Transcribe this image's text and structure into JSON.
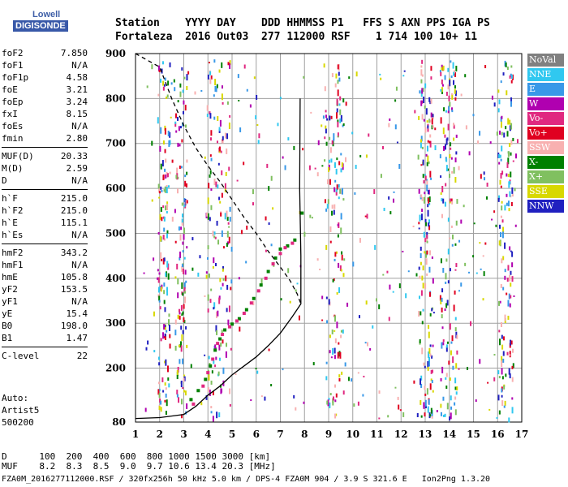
{
  "logo": {
    "line1": "Lowell",
    "line2": "DIGISONDE"
  },
  "header": {
    "line1": "Station    YYYY DAY    DDD HHMMSS P1   FFS S AXN PPS IGA PS",
    "line2": "Fortaleza  2016 Out03  277 112000 RSF    1 714 100 10+ 11"
  },
  "params": {
    "group1": [
      {
        "label": "foF2",
        "value": "7.850"
      },
      {
        "label": "foF1",
        "value": "N/A"
      },
      {
        "label": "foF1p",
        "value": "4.58"
      },
      {
        "label": "foE",
        "value": "3.21"
      },
      {
        "label": "foEp",
        "value": "3.24"
      },
      {
        "label": "fxI",
        "value": "8.15"
      },
      {
        "label": "foEs",
        "value": "N/A"
      },
      {
        "label": "fmin",
        "value": "2.80"
      }
    ],
    "group2": [
      {
        "label": "MUF(D)",
        "value": "20.33"
      },
      {
        "label": "M(D)",
        "value": "2.59"
      },
      {
        "label": "D",
        "value": "N/A"
      }
    ],
    "group3": [
      {
        "label": "h`F",
        "value": "215.0"
      },
      {
        "label": "h`F2",
        "value": "215.0"
      },
      {
        "label": "h`E",
        "value": "115.1"
      },
      {
        "label": "h`Es",
        "value": "N/A"
      }
    ],
    "group4": [
      {
        "label": "hmF2",
        "value": "343.2"
      },
      {
        "label": "hmF1",
        "value": "N/A"
      },
      {
        "label": "hmE",
        "value": "105.8"
      },
      {
        "label": "yF2",
        "value": "153.5"
      },
      {
        "label": "yF1",
        "value": "N/A"
      },
      {
        "label": "yE",
        "value": "15.4"
      },
      {
        "label": "B0",
        "value": "198.0"
      },
      {
        "label": "B1",
        "value": "1.47"
      }
    ],
    "group5": [
      {
        "label": "C-level",
        "value": "22"
      }
    ]
  },
  "auto": {
    "line1": "Auto:",
    "line2": "Artist5",
    "line3": "500200"
  },
  "legend": [
    {
      "label": "NoVal",
      "color": "#808080"
    },
    {
      "label": "NNE",
      "color": "#30c8f0"
    },
    {
      "label": "E",
      "color": "#3898e8"
    },
    {
      "label": "W",
      "color": "#b000b0"
    },
    {
      "label": "Vo-",
      "color": "#e02880"
    },
    {
      "label": "Vo+",
      "color": "#e00020"
    },
    {
      "label": "SSW",
      "color": "#f8b0b0"
    },
    {
      "label": "X-",
      "color": "#008000"
    },
    {
      "label": "X+",
      "color": "#80c060"
    },
    {
      "label": "SSE",
      "color": "#d8d800"
    },
    {
      "label": "NNW",
      "color": "#2020c0"
    }
  ],
  "footer": {
    "line1": "D      100  200  400  600  800 1000 1500 3000 [km]",
    "line2": "MUF    8.2  8.3  8.5  9.0  9.7 10.6 13.4 20.3 [MHz]",
    "line3": "FZA0M_2016277112000.RSF / 320fx256h 50 kHz 5.0 km / DPS-4 FZA0M 904 / 3.9 S 321.6 E   Ion2Png 1.3.20"
  },
  "chart_data": {
    "type": "scatter",
    "x_ticks": [
      1,
      2,
      3,
      4,
      5,
      6,
      7,
      8,
      9,
      10,
      11,
      12,
      13,
      14,
      15,
      16,
      17
    ],
    "y_ticks": [
      200,
      300,
      400,
      500,
      600,
      700,
      800,
      900
    ],
    "y_tick_labels": [
      "200",
      "300",
      "400",
      "500",
      "600",
      "700",
      "800",
      "900"
    ],
    "y_bottom_label": "80",
    "xlim": [
      1,
      17
    ],
    "ylim": [
      80,
      900
    ],
    "grid": true,
    "series": [
      {
        "color": "#008000",
        "points": [
          [
            3.3,
            130
          ],
          [
            3.6,
            150
          ],
          [
            3.9,
            175
          ],
          [
            4.1,
            205
          ],
          [
            4.3,
            240
          ],
          [
            4.5,
            265
          ],
          [
            4.7,
            285
          ],
          [
            5.0,
            298
          ],
          [
            5.3,
            310
          ],
          [
            5.6,
            330
          ],
          [
            5.9,
            355
          ],
          [
            6.2,
            385
          ],
          [
            6.5,
            415
          ],
          [
            6.8,
            445
          ],
          [
            7.0,
            465
          ],
          [
            7.3,
            472
          ],
          [
            7.6,
            485
          ],
          [
            7.9,
            545
          ]
        ]
      },
      {
        "color": "#e02880",
        "points": [
          [
            3.4,
            120
          ],
          [
            3.8,
            160
          ],
          [
            4.0,
            190
          ],
          [
            4.2,
            220
          ],
          [
            4.4,
            255
          ],
          [
            4.6,
            275
          ],
          [
            4.9,
            292
          ],
          [
            5.2,
            305
          ],
          [
            5.5,
            322
          ],
          [
            5.8,
            345
          ],
          [
            6.1,
            372
          ],
          [
            6.4,
            400
          ],
          [
            6.7,
            432
          ],
          [
            7.0,
            455
          ],
          [
            7.2,
            468
          ],
          [
            7.5,
            478
          ]
        ]
      },
      {
        "color": "#000000",
        "style": "solid",
        "points": [
          [
            1,
            88
          ],
          [
            2,
            90
          ],
          [
            3,
            97
          ],
          [
            3.5,
            115
          ],
          [
            4,
            140
          ],
          [
            4.5,
            160
          ],
          [
            5,
            185
          ],
          [
            5.5,
            205
          ],
          [
            6,
            225
          ],
          [
            6.5,
            250
          ],
          [
            7,
            278
          ],
          [
            7.5,
            315
          ],
          [
            7.85,
            343
          ],
          [
            7.85,
            450
          ],
          [
            7.8,
            600
          ],
          [
            7.82,
            800
          ]
        ]
      },
      {
        "color": "#000000",
        "style": "dashed",
        "points": [
          [
            1,
            900
          ],
          [
            2,
            870
          ],
          [
            2.5,
            800
          ],
          [
            3,
            740
          ],
          [
            3.5,
            690
          ],
          [
            4,
            650
          ],
          [
            4.5,
            615
          ],
          [
            5,
            575
          ],
          [
            5.5,
            535
          ],
          [
            6,
            500
          ],
          [
            6.5,
            460
          ],
          [
            7,
            425
          ],
          [
            7.4,
            395
          ],
          [
            7.7,
            365
          ],
          [
            7.85,
            343
          ]
        ]
      }
    ]
  }
}
